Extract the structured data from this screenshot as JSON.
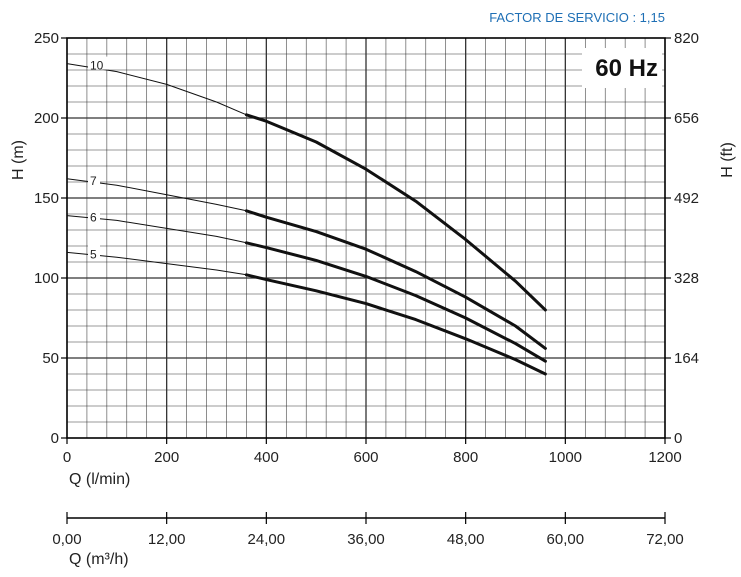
{
  "chart_data": {
    "type": "line",
    "note": "FACTOR DE SERVICIO : 1,15",
    "frequency_label": "60 Hz",
    "xlabel": "Q (l/min)",
    "ylabel_left": "H (m)",
    "ylabel_right": "H (ft)",
    "x2label": "Q (m³/h)",
    "xlim": [
      0,
      1200
    ],
    "ylim": [
      0,
      250
    ],
    "x_ticks": [
      "0",
      "200",
      "400",
      "600",
      "800",
      "1000",
      "1200"
    ],
    "x_tick_values": [
      0,
      200,
      400,
      600,
      800,
      1000,
      1200
    ],
    "y_ticks": [
      "0",
      "50",
      "100",
      "150",
      "200",
      "250"
    ],
    "y_tick_values": [
      0,
      50,
      100,
      150,
      200,
      250
    ],
    "y_right_ticks": [
      "0",
      "164",
      "328",
      "492",
      "656",
      "820"
    ],
    "x2_ticks": [
      "0,00",
      "12,00",
      "24,00",
      "36,00",
      "48,00",
      "60,00",
      "72,00"
    ],
    "grid": true,
    "series": [
      {
        "name": "10",
        "x": [
          0,
          100,
          200,
          300,
          360,
          400,
          500,
          600,
          700,
          800,
          900,
          960
        ],
        "y": [
          234,
          229,
          221,
          210,
          202,
          198,
          185,
          168,
          148,
          124,
          98,
          80
        ]
      },
      {
        "name": "7",
        "x": [
          0,
          100,
          200,
          300,
          360,
          400,
          500,
          600,
          700,
          800,
          900,
          960
        ],
        "y": [
          162,
          158,
          152,
          146,
          142,
          138,
          129,
          118,
          104,
          88,
          70,
          56
        ]
      },
      {
        "name": "6",
        "x": [
          0,
          100,
          200,
          300,
          360,
          400,
          500,
          600,
          700,
          800,
          900,
          960
        ],
        "y": [
          139,
          136,
          131,
          126,
          122,
          119,
          111,
          101,
          89,
          75,
          59,
          48
        ]
      },
      {
        "name": "5",
        "x": [
          0,
          100,
          200,
          300,
          360,
          400,
          500,
          600,
          700,
          800,
          900,
          960
        ],
        "y": [
          116,
          113,
          109,
          105,
          102,
          99,
          92,
          84,
          74,
          62,
          49,
          40
        ]
      }
    ],
    "bold_from_x": 360
  },
  "colors": {
    "curve": "#111111",
    "grid": "#333333",
    "note": "#1e6fb5"
  }
}
